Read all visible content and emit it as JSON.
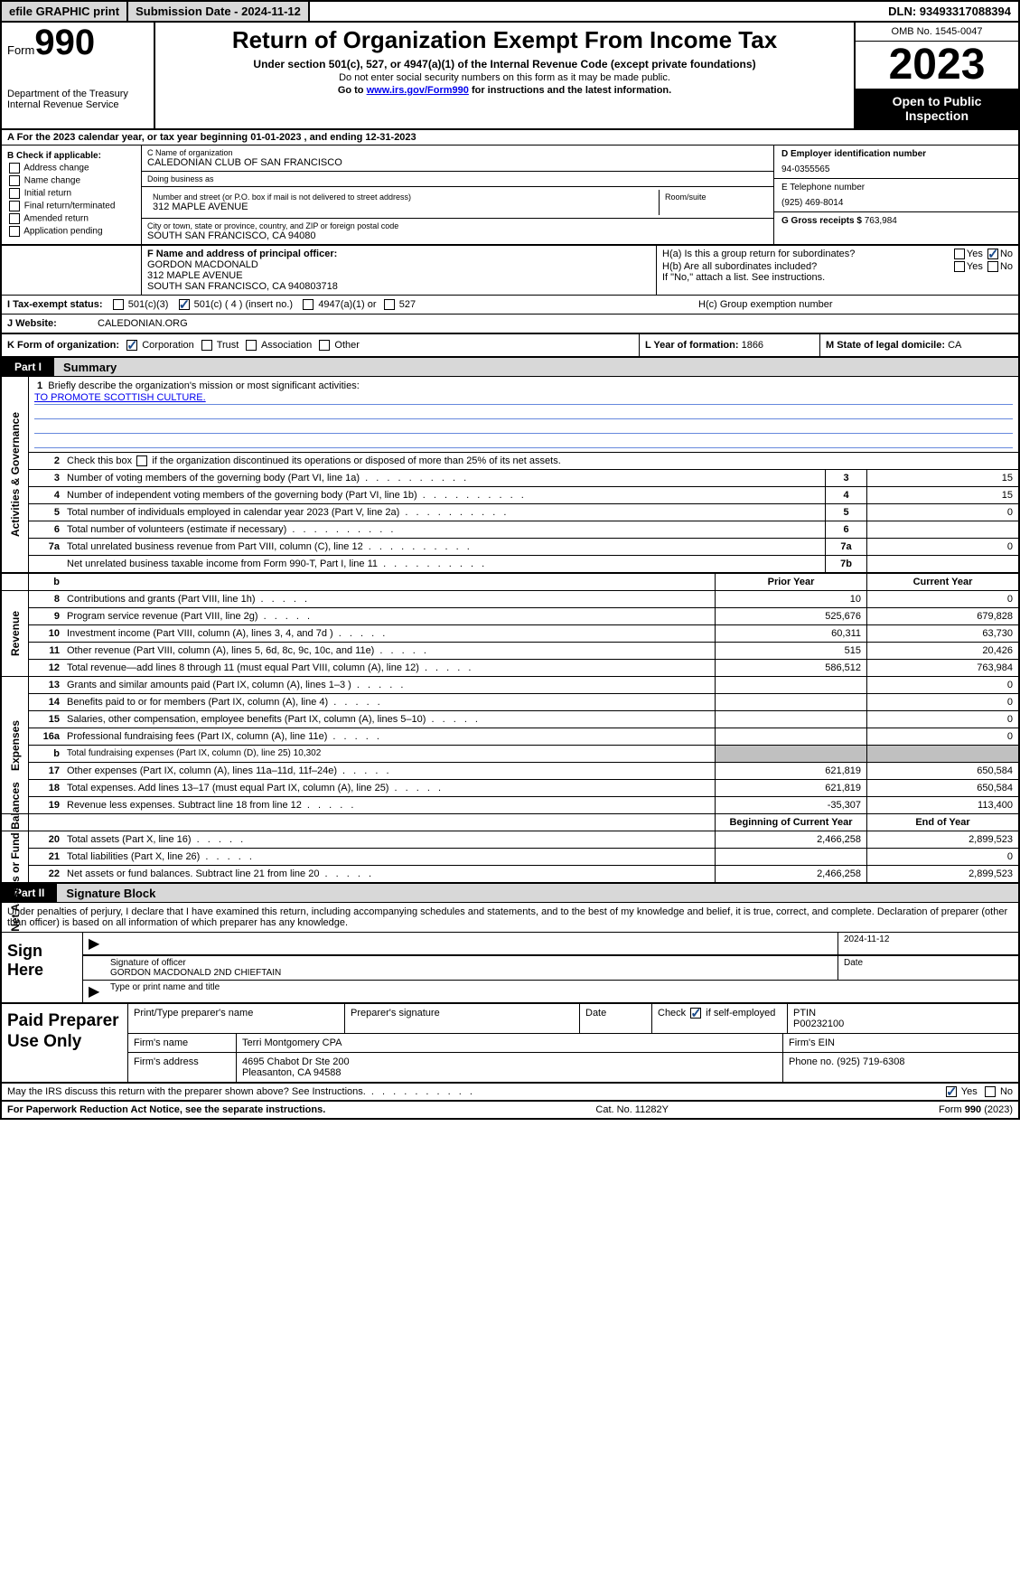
{
  "colors": {
    "link": "#0000ee",
    "checkbox_check": "#1a4a8a",
    "part_bg": "#d8d8d8",
    "gray_cell": "#c0c0c0",
    "blue_line": "#6688dd"
  },
  "topbar": {
    "efile_btn": "efile GRAPHIC print",
    "submission_label": "Submission Date - 2024-11-12",
    "dln_label": "DLN: 93493317088394"
  },
  "header": {
    "form_prefix": "Form",
    "form_number": "990",
    "dept": "Department of the Treasury",
    "irs": "Internal Revenue Service",
    "title": "Return of Organization Exempt From Income Tax",
    "subtitle": "Under section 501(c), 527, or 4947(a)(1) of the Internal Revenue Code (except private foundations)",
    "ssn_note": "Do not enter social security numbers on this form as it may be made public.",
    "goto_prefix": "Go to ",
    "goto_link": "www.irs.gov/Form990",
    "goto_suffix": " for instructions and the latest information.",
    "omb": "OMB No. 1545-0047",
    "year": "2023",
    "open": "Open to Public Inspection"
  },
  "lineA": {
    "text_prefix": "A For the 2023 calendar year, or tax year beginning ",
    "begin": "01-01-2023",
    "mid": " , and ending ",
    "end": "12-31-2023"
  },
  "boxB": {
    "label": "B Check if applicable:",
    "items": [
      "Address change",
      "Name change",
      "Initial return",
      "Final return/terminated",
      "Amended return",
      "Application pending"
    ]
  },
  "boxC": {
    "name_lbl": "C Name of organization",
    "name": "CALEDONIAN CLUB OF SAN FRANCISCO",
    "dba_lbl": "Doing business as",
    "dba": "",
    "street_lbl": "Number and street (or P.O. box if mail is not delivered to street address)",
    "room_lbl": "Room/suite",
    "street": "312 MAPLE AVENUE",
    "city_lbl": "City or town, state or province, country, and ZIP or foreign postal code",
    "city": "SOUTH SAN FRANCISCO, CA  94080"
  },
  "boxD": {
    "lbl": "D Employer identification number",
    "val": "94-0355565"
  },
  "boxE": {
    "lbl": "E Telephone number",
    "val": "(925) 469-8014"
  },
  "boxG": {
    "lbl": "G Gross receipts $",
    "val": "763,984"
  },
  "boxF": {
    "lbl": "F  Name and address of principal officer:",
    "name": "GORDON MACDONALD",
    "street": "312 MAPLE AVENUE",
    "city": "SOUTH SAN FRANCISCO, CA  940803718"
  },
  "boxH": {
    "a": "H(a)  Is this a group return for subordinates?",
    "b": "H(b)  Are all subordinates included?",
    "b_note": "If \"No,\" attach a list. See instructions.",
    "c": "H(c)  Group exemption number",
    "yes": "Yes",
    "no": "No",
    "a_checked": "no"
  },
  "rowI": {
    "lbl": "I  Tax-exempt status:",
    "o1": "501(c)(3)",
    "o2": "501(c) ( 4 ) (insert no.)",
    "o3": "4947(a)(1) or",
    "o4": "527",
    "checked": "o2"
  },
  "rowJ": {
    "lbl": "J  Website:",
    "val": "CALEDONIAN.ORG"
  },
  "rowK": {
    "lbl": "K Form of organization:",
    "opts": [
      "Corporation",
      "Trust",
      "Association",
      "Other"
    ],
    "checked": 0,
    "L_lbl": "L Year of formation:",
    "L_val": "1866",
    "M_lbl": "M State of legal domicile:",
    "M_val": "CA"
  },
  "partI": {
    "tag": "Part I",
    "title": "Summary",
    "line1_lbl": "Briefly describe the organization's mission or most significant activities:",
    "mission": "TO PROMOTE SCOTTISH CULTURE.",
    "line2": "Check this box       if the organization discontinued its operations or disposed of more than 25% of its net assets.",
    "sections": {
      "governance": "Activities & Governance",
      "revenue": "Revenue",
      "expenses": "Expenses",
      "netassets": "Net Assets or Fund Balances"
    },
    "col_prior": "Prior Year",
    "col_current": "Current Year",
    "col_begin": "Beginning of Current Year",
    "col_end": "End of Year",
    "gov_lines": [
      {
        "n": "3",
        "t": "Number of voting members of the governing body (Part VI, line 1a)",
        "box": "3",
        "v": "15"
      },
      {
        "n": "4",
        "t": "Number of independent voting members of the governing body (Part VI, line 1b)",
        "box": "4",
        "v": "15"
      },
      {
        "n": "5",
        "t": "Total number of individuals employed in calendar year 2023 (Part V, line 2a)",
        "box": "5",
        "v": "0"
      },
      {
        "n": "6",
        "t": "Total number of volunteers (estimate if necessary)",
        "box": "6",
        "v": ""
      },
      {
        "n": "7a",
        "t": "Total unrelated business revenue from Part VIII, column (C), line 12",
        "box": "7a",
        "v": "0"
      },
      {
        "n": "",
        "t": "Net unrelated business taxable income from Form 990-T, Part I, line 11",
        "box": "7b",
        "v": ""
      }
    ],
    "b_row": "b",
    "rev_lines": [
      {
        "n": "8",
        "t": "Contributions and grants (Part VIII, line 1h)",
        "p": "10",
        "c": "0"
      },
      {
        "n": "9",
        "t": "Program service revenue (Part VIII, line 2g)",
        "p": "525,676",
        "c": "679,828"
      },
      {
        "n": "10",
        "t": "Investment income (Part VIII, column (A), lines 3, 4, and 7d )",
        "p": "60,311",
        "c": "63,730"
      },
      {
        "n": "11",
        "t": "Other revenue (Part VIII, column (A), lines 5, 6d, 8c, 9c, 10c, and 11e)",
        "p": "515",
        "c": "20,426"
      },
      {
        "n": "12",
        "t": "Total revenue—add lines 8 through 11 (must equal Part VIII, column (A), line 12)",
        "p": "586,512",
        "c": "763,984"
      }
    ],
    "exp_lines": [
      {
        "n": "13",
        "t": "Grants and similar amounts paid (Part IX, column (A), lines 1–3 )",
        "p": "",
        "c": "0"
      },
      {
        "n": "14",
        "t": "Benefits paid to or for members (Part IX, column (A), line 4)",
        "p": "",
        "c": "0"
      },
      {
        "n": "15",
        "t": "Salaries, other compensation, employee benefits (Part IX, column (A), lines 5–10)",
        "p": "",
        "c": "0"
      },
      {
        "n": "16a",
        "t": "Professional fundraising fees (Part IX, column (A), line 11e)",
        "p": "",
        "c": "0"
      },
      {
        "n": "b",
        "t": "Total fundraising expenses (Part IX, column (D), line 25) 10,302",
        "shade": true
      },
      {
        "n": "17",
        "t": "Other expenses (Part IX, column (A), lines 11a–11d, 11f–24e)",
        "p": "621,819",
        "c": "650,584"
      },
      {
        "n": "18",
        "t": "Total expenses. Add lines 13–17 (must equal Part IX, column (A), line 25)",
        "p": "621,819",
        "c": "650,584"
      },
      {
        "n": "19",
        "t": "Revenue less expenses. Subtract line 18 from line 12",
        "p": "-35,307",
        "c": "113,400"
      }
    ],
    "na_lines": [
      {
        "n": "20",
        "t": "Total assets (Part X, line 16)",
        "p": "2,466,258",
        "c": "2,899,523"
      },
      {
        "n": "21",
        "t": "Total liabilities (Part X, line 26)",
        "p": "",
        "c": "0"
      },
      {
        "n": "22",
        "t": "Net assets or fund balances. Subtract line 21 from line 20",
        "p": "2,466,258",
        "c": "2,899,523"
      }
    ]
  },
  "partII": {
    "tag": "Part II",
    "title": "Signature Block",
    "declaration": "Under penalties of perjury, I declare that I have examined this return, including accompanying schedules and statements, and to the best of my knowledge and belief, it is true, correct, and complete. Declaration of preparer (other than officer) is based on all information of which preparer has any knowledge.",
    "sign_here": "Sign Here",
    "sig_of_officer": "Signature of officer",
    "officer_name": "GORDON MACDONALD  2ND CHIEFTAIN",
    "type_name": "Type or print name and title",
    "sig_date_lbl": "Date",
    "sig_date": "2024-11-12",
    "paid_prep": "Paid Preparer Use Only",
    "prep_name_lbl": "Print/Type preparer's name",
    "prep_sig_lbl": "Preparer's signature",
    "date_lbl": "Date",
    "self_emp": "Check         if self-employed",
    "ptin_lbl": "PTIN",
    "ptin": "P00232100",
    "firm_name_lbl": "Firm's name",
    "firm_name": "Terri Montgomery CPA",
    "firm_ein_lbl": "Firm's EIN",
    "firm_addr_lbl": "Firm's address",
    "firm_addr1": "4695 Chabot Dr Ste 200",
    "firm_addr2": "Pleasanton, CA  94588",
    "phone_lbl": "Phone no.",
    "phone": "(925) 719-6308",
    "discuss": "May the IRS discuss this return with the preparer shown above? See Instructions.",
    "yes": "Yes",
    "no": "No"
  },
  "footer": {
    "pra": "For Paperwork Reduction Act Notice, see the separate instructions.",
    "cat": "Cat. No. 11282Y",
    "form": "Form 990 (2023)"
  }
}
